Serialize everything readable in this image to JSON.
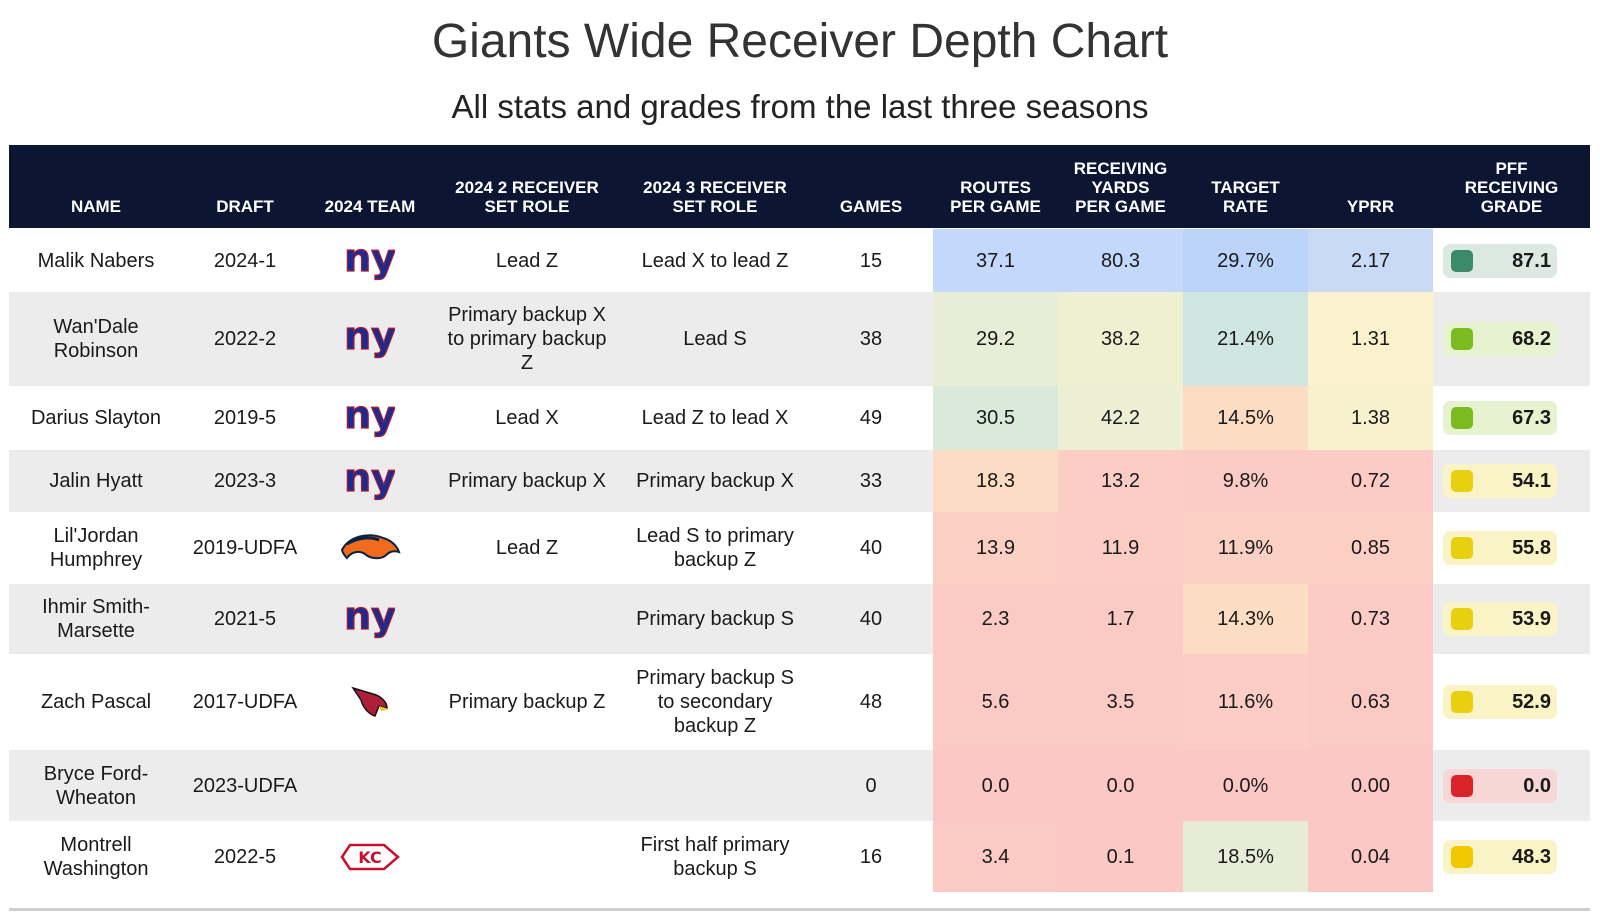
{
  "header": {
    "title": "Giants Wide Receiver Depth Chart",
    "subtitle": "All stats and grades from the last three seasons"
  },
  "columns": [
    {
      "key": "name",
      "label": [
        "NAME"
      ]
    },
    {
      "key": "draft",
      "label": [
        "DRAFT"
      ]
    },
    {
      "key": "team",
      "label": [
        "2024 TEAM"
      ]
    },
    {
      "key": "role2",
      "label": [
        "2024 2 RECEIVER",
        "SET ROLE"
      ]
    },
    {
      "key": "role3",
      "label": [
        "2024 3 RECEIVER",
        "SET ROLE"
      ]
    },
    {
      "key": "games",
      "label": [
        "GAMES"
      ]
    },
    {
      "key": "routes",
      "label": [
        "ROUTES",
        "PER GAME"
      ]
    },
    {
      "key": "yards",
      "label": [
        "RECEIVING",
        "YARDS",
        "PER GAME"
      ]
    },
    {
      "key": "target",
      "label": [
        "TARGET",
        "RATE"
      ]
    },
    {
      "key": "yprr",
      "label": [
        "YPRR"
      ]
    },
    {
      "key": "grade",
      "label": [
        "PFF",
        "RECEIVING",
        "GRADE"
      ]
    }
  ],
  "chart_data": {
    "type": "table",
    "title": "Giants Wide Receiver Depth Chart",
    "subtitle": "All stats and grades from the last three seasons",
    "rows": [
      {
        "name": [
          "Malik Nabers"
        ],
        "draft": "2024-1",
        "team_icon": "giants-logo-icon",
        "role2": [
          "Lead Z"
        ],
        "role3": [
          "Lead X to lead Z"
        ],
        "games": "15",
        "routes": "37.1",
        "yards": "80.3",
        "target": "29.7%",
        "yprr": "2.17",
        "grade": "87.1",
        "colors": {
          "routes": "#c3d8fb",
          "yards": "#c3d8fb",
          "target": "#bcd4fa",
          "yprr": "#c9daf6",
          "grade_bg": "#dbe9e2",
          "grade_dot": "#3b8a6a"
        }
      },
      {
        "name": [
          "Wan'Dale",
          "Robinson"
        ],
        "draft": "2022-2",
        "team_icon": "giants-logo-icon",
        "role2": [
          "Primary backup X",
          "to primary backup",
          "Z"
        ],
        "role3": [
          "Lead S"
        ],
        "games": "38",
        "routes": "29.2",
        "yards": "38.2",
        "target": "21.4%",
        "yprr": "1.31",
        "grade": "68.2",
        "colors": {
          "routes": "#e7edd6",
          "yards": "#eff0d2",
          "target": "#cfe5e0",
          "yprr": "#fbf1cc",
          "grade_bg": "#e6f2d0",
          "grade_dot": "#7cbb1f"
        }
      },
      {
        "name": [
          "Darius Slayton"
        ],
        "draft": "2019-5",
        "team_icon": "giants-logo-icon",
        "role2": [
          "Lead X"
        ],
        "role3": [
          "Lead Z to lead X"
        ],
        "games": "49",
        "routes": "30.5",
        "yards": "42.2",
        "target": "14.5%",
        "yprr": "1.38",
        "grade": "67.3",
        "colors": {
          "routes": "#d9eadb",
          "yards": "#ecefd3",
          "target": "#fcdcc2",
          "yprr": "#f8f1cd",
          "grade_bg": "#e6f2d0",
          "grade_dot": "#7cbb1f"
        }
      },
      {
        "name": [
          "Jalin Hyatt"
        ],
        "draft": "2023-3",
        "team_icon": "giants-logo-icon",
        "role2": [
          "Primary backup X"
        ],
        "role3": [
          "Primary backup X"
        ],
        "games": "33",
        "routes": "18.3",
        "yards": "13.2",
        "target": "9.8%",
        "yprr": "0.72",
        "grade": "54.1",
        "colors": {
          "routes": "#fcdcc4",
          "yards": "#fbcdc4",
          "target": "#fccbc5",
          "yprr": "#fccbc5",
          "grade_bg": "#faf3c6",
          "grade_dot": "#e8cf10"
        }
      },
      {
        "name": [
          "Lil'Jordan",
          "Humphrey"
        ],
        "draft": "2019-UDFA",
        "team_icon": "broncos-logo-icon",
        "role2": [
          "Lead Z"
        ],
        "role3": [
          "Lead S to primary",
          "backup Z"
        ],
        "games": "40",
        "routes": "13.9",
        "yards": "11.9",
        "target": "11.9%",
        "yprr": "0.85",
        "grade": "55.8",
        "colors": {
          "routes": "#fbd0c4",
          "yards": "#fbcdc4",
          "target": "#fbd0c4",
          "yprr": "#fbcfc4",
          "grade_bg": "#faf3c6",
          "grade_dot": "#e8cf10"
        }
      },
      {
        "name": [
          "Ihmir Smith-",
          "Marsette"
        ],
        "draft": "2021-5",
        "team_icon": "giants-logo-icon",
        "role2": [
          ""
        ],
        "role3": [
          "Primary backup S"
        ],
        "games": "40",
        "routes": "2.3",
        "yards": "1.7",
        "target": "14.3%",
        "yprr": "0.73",
        "grade": "53.9",
        "colors": {
          "routes": "#fbcac5",
          "yards": "#fbcac5",
          "target": "#fcdcc2",
          "yprr": "#fccbc5",
          "grade_bg": "#faf3c6",
          "grade_dot": "#e8cf10"
        }
      },
      {
        "name": [
          "Zach Pascal"
        ],
        "draft": "2017-UDFA",
        "team_icon": "cardinals-logo-icon",
        "role2": [
          "Primary backup Z"
        ],
        "role3": [
          "Primary backup S",
          "to secondary",
          "backup Z"
        ],
        "games": "48",
        "routes": "5.6",
        "yards": "3.5",
        "target": "11.6%",
        "yprr": "0.63",
        "grade": "52.9",
        "colors": {
          "routes": "#fbcac5",
          "yards": "#fbcac5",
          "target": "#fbcdc4",
          "yprr": "#fccac5",
          "grade_bg": "#faf3c6",
          "grade_dot": "#e8cf10"
        }
      },
      {
        "name": [
          "Bryce Ford-",
          "Wheaton"
        ],
        "draft": "2023-UDFA",
        "team_icon": "",
        "role2": [
          ""
        ],
        "role3": [
          ""
        ],
        "games": "0",
        "routes": "0.0",
        "yards": "0.0",
        "target": "0.0%",
        "yprr": "0.00",
        "grade": "0.0",
        "colors": {
          "routes": "#fbc8c5",
          "yards": "#fbc8c5",
          "target": "#fbc8c5",
          "yprr": "#fbc8c5",
          "grade_bg": "#f7d6d6",
          "grade_dot": "#d9222a"
        }
      },
      {
        "name": [
          "Montrell",
          "Washington"
        ],
        "draft": "2022-5",
        "team_icon": "chiefs-logo-icon",
        "role2": [
          ""
        ],
        "role3": [
          "First half primary",
          "backup S"
        ],
        "games": "16",
        "routes": "3.4",
        "yards": "0.1",
        "target": "18.5%",
        "yprr": "0.04",
        "grade": "48.3",
        "colors": {
          "routes": "#fbcac5",
          "yards": "#fbc8c5",
          "target": "#e6ecd8",
          "yprr": "#fbc8c5",
          "grade_bg": "#faf3c6",
          "grade_dot": "#f2c800"
        }
      }
    ]
  }
}
